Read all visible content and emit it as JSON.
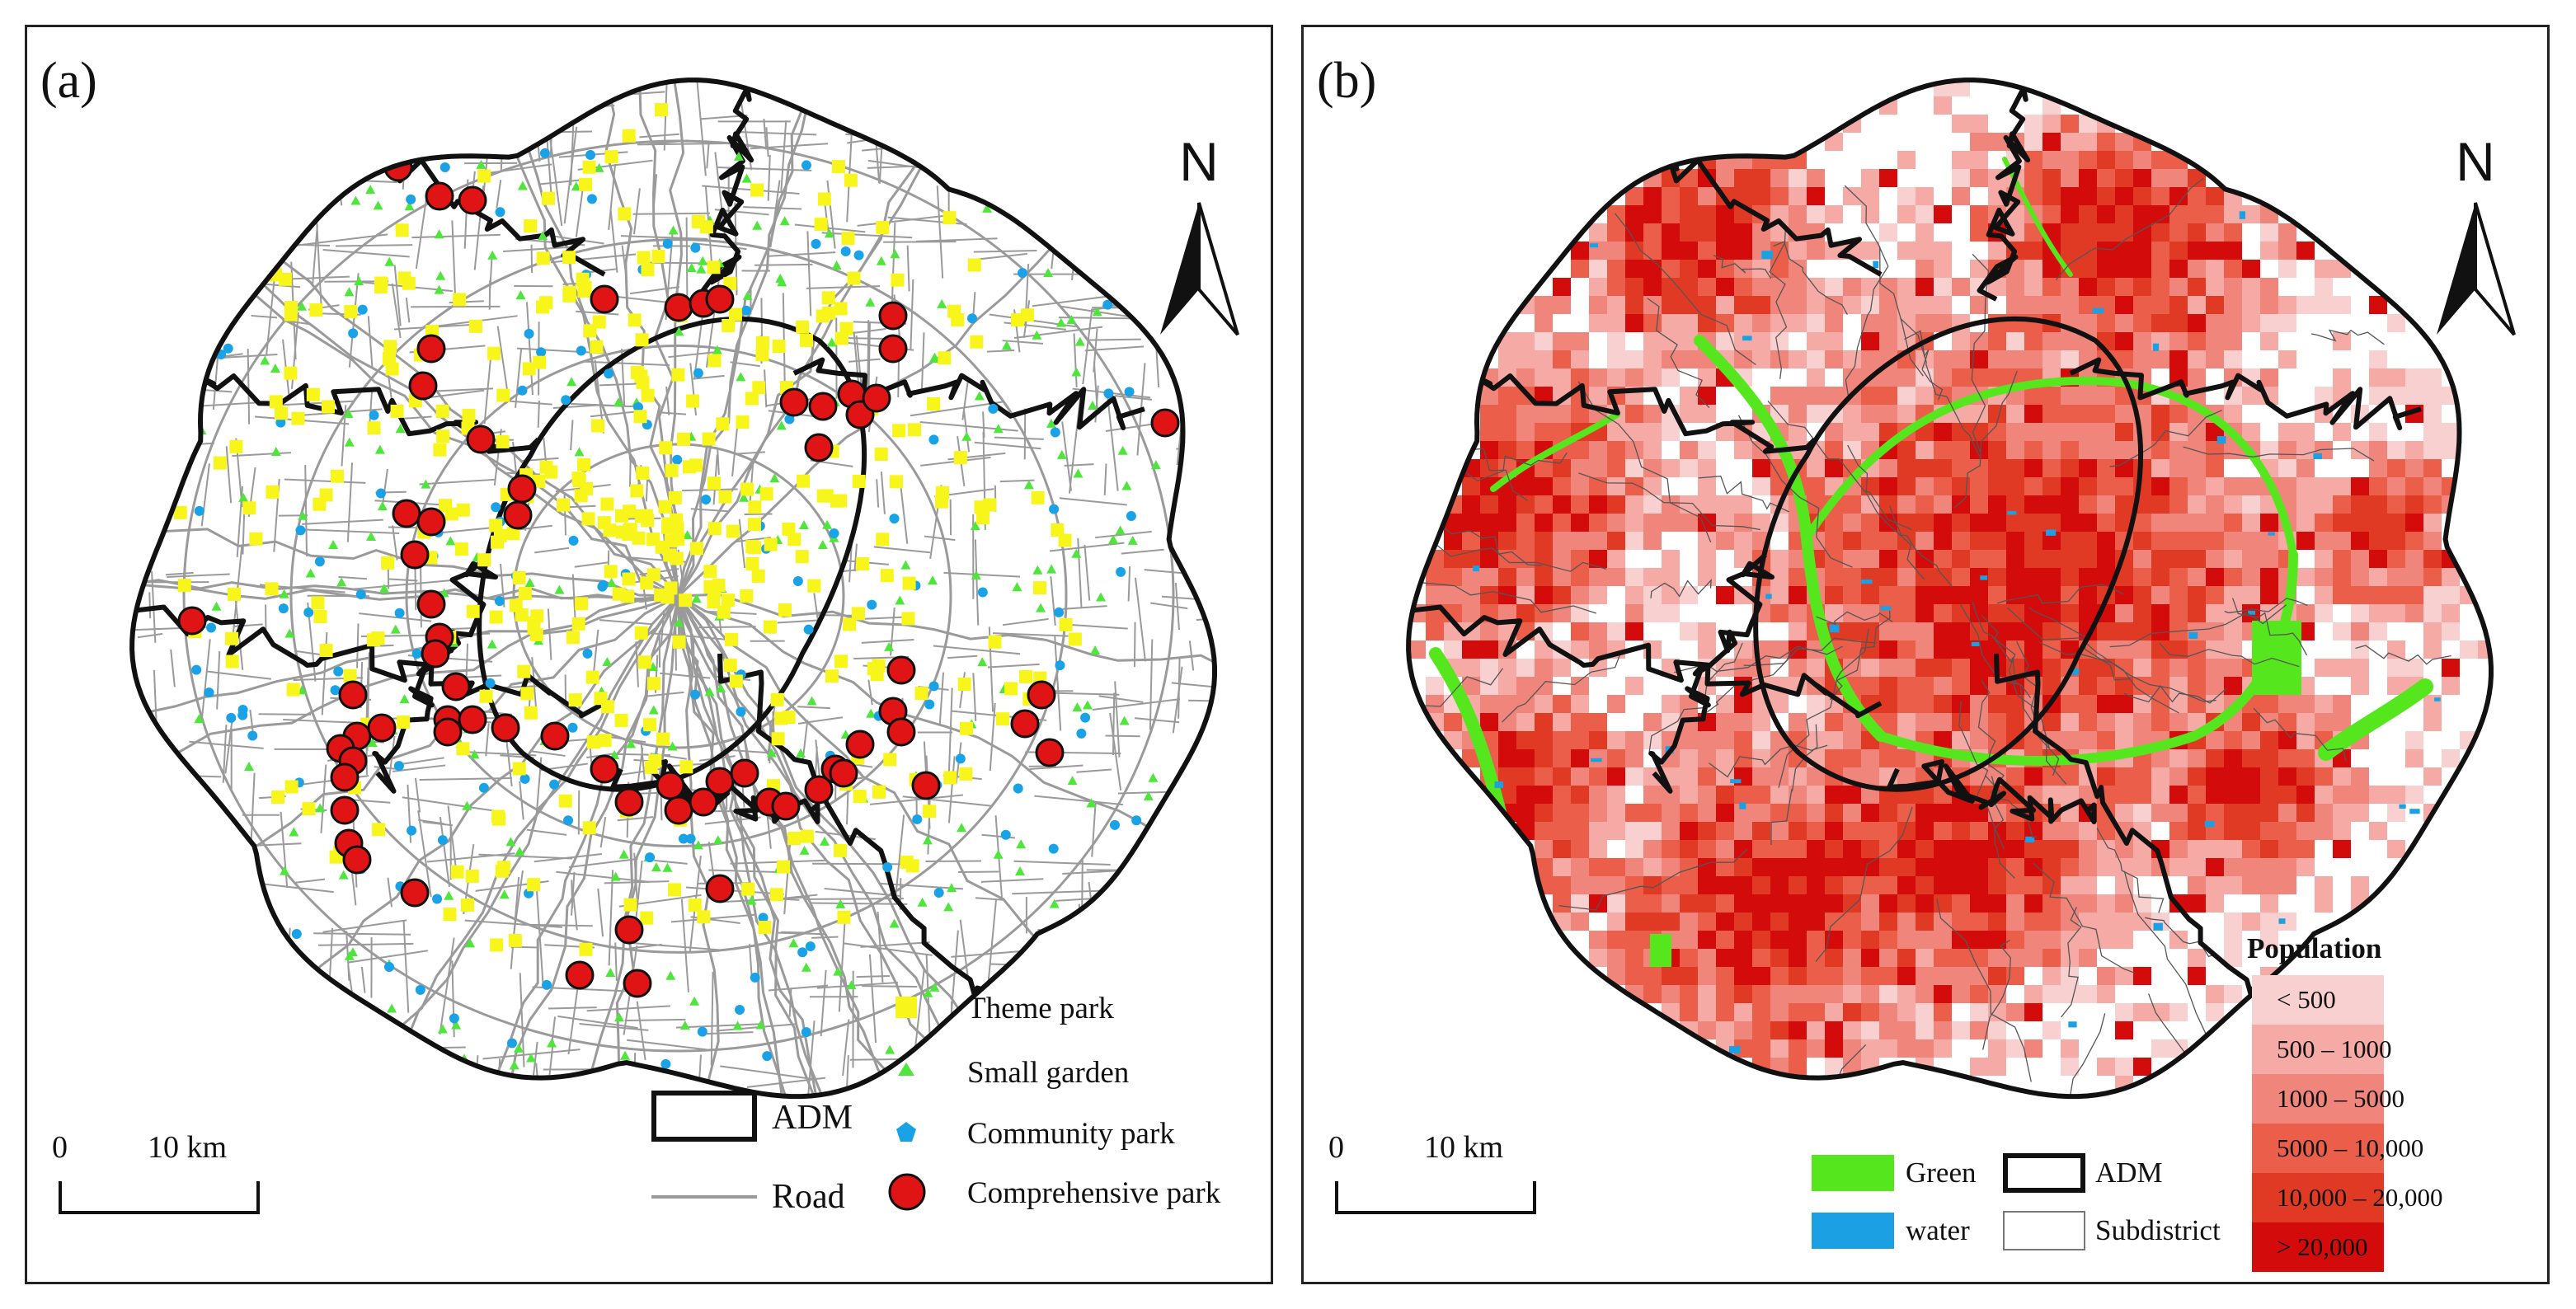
{
  "panel_a": {
    "label": "(a)",
    "north": "N",
    "scale": {
      "start": "0",
      "end": "10 km"
    },
    "legend": {
      "theme_park": {
        "label": "Theme park",
        "color": "#f7f51a"
      },
      "small_garden": {
        "label": "Small garden",
        "color": "#4fe63b"
      },
      "community_park": {
        "label": "Community park",
        "color": "#1aa2e6"
      },
      "comprehensive_park": {
        "label": "Comprehensive park",
        "color": "#e01414"
      },
      "adm": {
        "label": "ADM"
      },
      "road": {
        "label": "Road",
        "color": "#9a9a9a"
      }
    }
  },
  "panel_b": {
    "label": "(b)",
    "north": "N",
    "scale": {
      "start": "0",
      "end": "10 km"
    },
    "legend": {
      "green": {
        "label": "Green",
        "color": "#55e61e"
      },
      "water": {
        "label": "water",
        "color": "#1ba0e4"
      },
      "adm": {
        "label": "ADM"
      },
      "subdistrict": {
        "label": "Subdistrict"
      }
    },
    "population": {
      "title": "Population",
      "classes": [
        {
          "label": "< 500",
          "color": "#f9d0d0"
        },
        {
          "label": "500 – 1000",
          "color": "#f5aaa6"
        },
        {
          "label": "1000 – 5000",
          "color": "#f0857b"
        },
        {
          "label": "5000 – 10,000",
          "color": "#ea5e4a"
        },
        {
          "label": "10,000 – 20,000",
          "color": "#e13a24"
        },
        {
          "label": "> 20,000",
          "color": "#d40b0b"
        }
      ]
    }
  }
}
